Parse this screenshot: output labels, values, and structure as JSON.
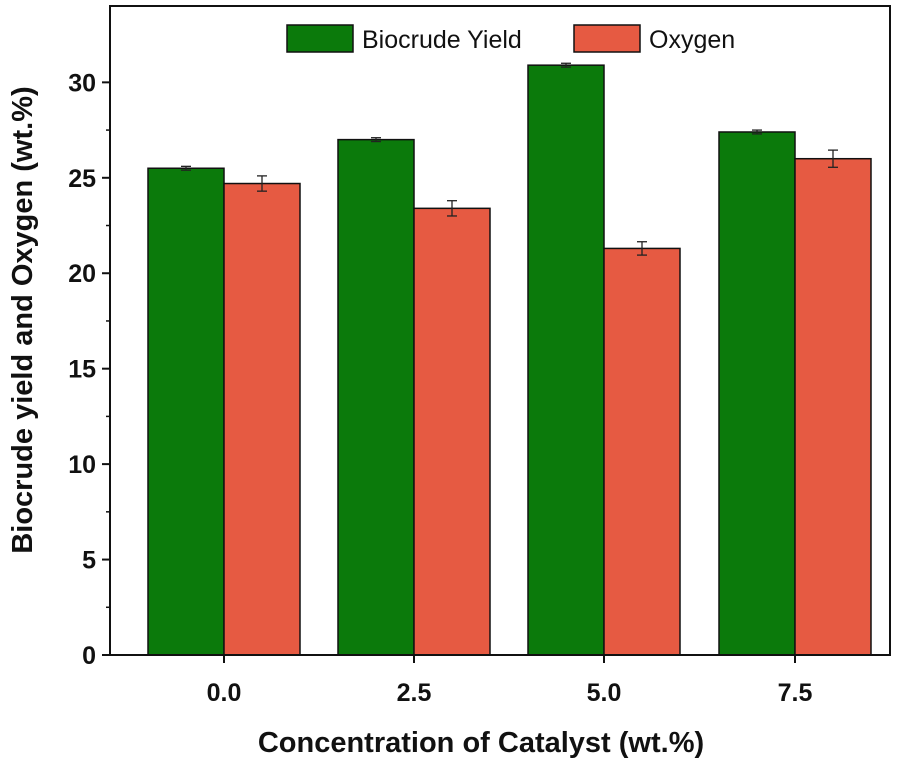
{
  "chart_data": {
    "type": "bar",
    "title": "",
    "xlabel": "Concentration of Catalyst (wt.%)",
    "ylabel": "Biocrude yield and Oxygen (wt.%)",
    "categories": [
      "0.0",
      "2.5",
      "5.0",
      "7.5"
    ],
    "ylim": [
      0,
      34
    ],
    "yticks": [
      "0",
      "5",
      "10",
      "15",
      "20",
      "25",
      "30"
    ],
    "legend_position": "top-center",
    "series": [
      {
        "name": "Biocrude Yield",
        "color": "#0b7a0b",
        "values": [
          25.5,
          27.0,
          30.9,
          27.4
        ],
        "errors": [
          0.1,
          0.1,
          0.1,
          0.1
        ]
      },
      {
        "name": "Oxygen",
        "color": "#e65a42",
        "values": [
          24.7,
          23.4,
          21.3,
          26.0
        ],
        "errors": [
          0.4,
          0.4,
          0.35,
          0.45
        ]
      }
    ]
  }
}
